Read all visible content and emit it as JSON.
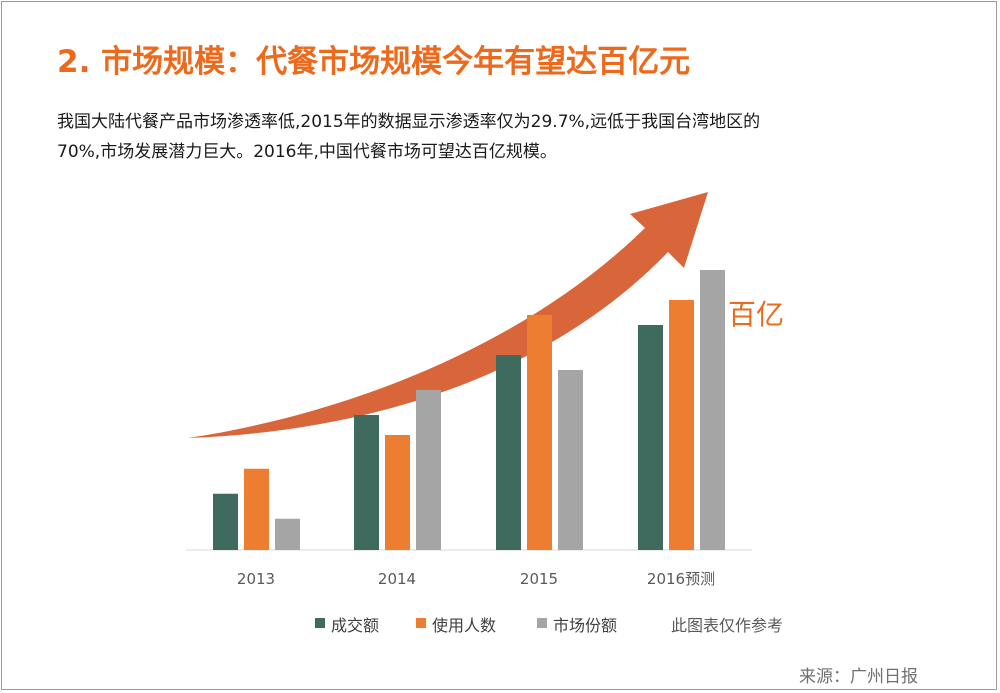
{
  "title": "2. 市场规模：代餐市场规模今年有望达百亿元",
  "description": [
    "我国大陆代餐产品市场渗透率低,2015年的数据显示渗透率仅为29.7%,远低于我国台湾地区的",
    "70%,市场发展潜力巨大。2016年,中国代餐市场可望达百亿规模。"
  ],
  "source": "来源：广州日报",
  "colors": {
    "accent": "#ed6a1d",
    "arrow": "#d9663a",
    "series": [
      "#3f6b5e",
      "#ed7d31",
      "#a5a5a5"
    ]
  },
  "chart_data": {
    "type": "bar",
    "categories": [
      "2013",
      "2014",
      "2015",
      "2016预测"
    ],
    "series": [
      {
        "name": "成交额",
        "values": [
          45,
          108,
          156,
          180
        ]
      },
      {
        "name": "使用人数",
        "values": [
          65,
          92,
          188,
          200
        ]
      },
      {
        "name": "市场份额",
        "values": [
          25,
          128,
          144,
          224
        ]
      }
    ],
    "ylim": [
      0,
      240
    ],
    "y_axis_visible": false,
    "grid": false,
    "annotation": "百亿",
    "legend_note": "此图表仅作参考",
    "legend_position": "bottom",
    "trend_arrow": "upward curved arrow"
  }
}
